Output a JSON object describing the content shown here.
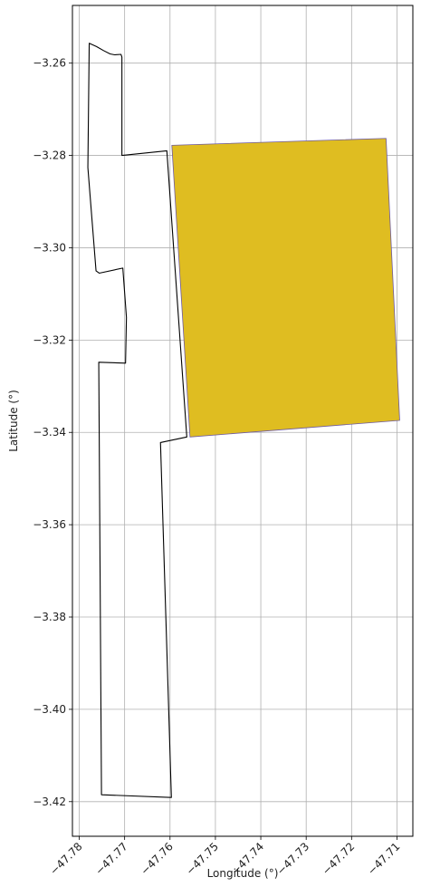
{
  "chart_data": {
    "type": "map",
    "xlabel": "Longitude (°)",
    "ylabel": "Latitude (°)",
    "xlim": [
      -47.7815,
      -47.7065
    ],
    "ylim": [
      -3.4275,
      -3.2475
    ],
    "grid": true,
    "x_ticks": [
      -47.78,
      -47.77,
      -47.76,
      -47.75,
      -47.74,
      -47.73,
      -47.72,
      -47.71
    ],
    "x_tick_labels": [
      "−47.78",
      "−47.77",
      "−47.76",
      "−47.75",
      "−47.74",
      "−47.73",
      "−47.72",
      "−47.71"
    ],
    "y_ticks": [
      -3.26,
      -3.28,
      -3.3,
      -3.32,
      -3.34,
      -3.36,
      -3.38,
      -3.4,
      -3.42
    ],
    "y_tick_labels": [
      "−3.26",
      "−3.28",
      "−3.30",
      "−3.32",
      "−3.34",
      "−3.36",
      "−3.38",
      "−3.40",
      "−3.42"
    ],
    "polygons": [
      {
        "fill": "none",
        "stroke": "#000000",
        "coords": [
          [
            -47.7778,
            -3.2557
          ],
          [
            -47.7762,
            -3.2564
          ],
          [
            -47.7746,
            -3.2573
          ],
          [
            -47.7732,
            -3.258
          ],
          [
            -47.7722,
            -3.2582
          ],
          [
            -47.7708,
            -3.2581
          ],
          [
            -47.7706,
            -3.2587
          ],
          [
            -47.7706,
            -3.28
          ],
          [
            -47.7607,
            -3.279
          ],
          [
            -47.7563,
            -3.341
          ],
          [
            -47.7621,
            -3.3422
          ],
          [
            -47.7597,
            -3.4191
          ],
          [
            -47.7751,
            -3.4185
          ],
          [
            -47.7757,
            -3.3248
          ],
          [
            -47.7698,
            -3.325
          ],
          [
            -47.7696,
            -3.3151
          ],
          [
            -47.7704,
            -3.3044
          ],
          [
            -47.7756,
            -3.3055
          ],
          [
            -47.7763,
            -3.305
          ],
          [
            -47.7781,
            -3.2826
          ],
          [
            -47.7778,
            -3.2557
          ]
        ]
      },
      {
        "fill": "#dfbd21",
        "stroke": "#6d5aa3",
        "coords": [
          [
            -47.7596,
            -3.2778
          ],
          [
            -47.7124,
            -3.2763
          ],
          [
            -47.7094,
            -3.3374
          ],
          [
            -47.7556,
            -3.341
          ],
          [
            -47.7596,
            -3.2778
          ]
        ]
      }
    ]
  }
}
